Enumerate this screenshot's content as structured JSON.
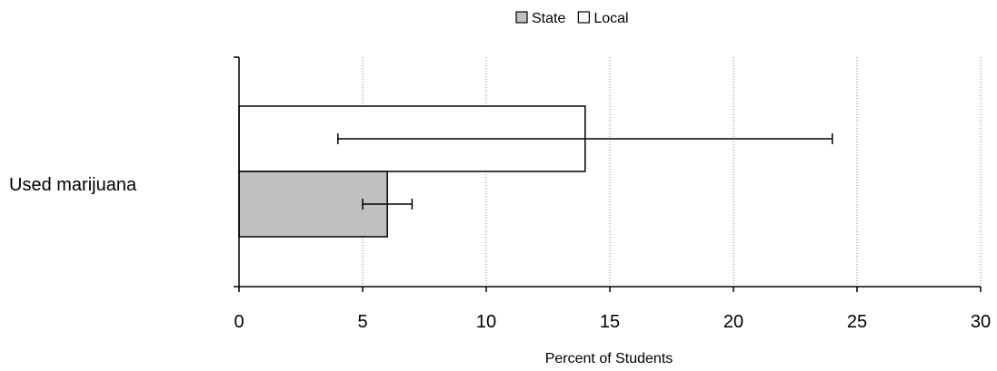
{
  "chart_data": {
    "type": "bar",
    "orientation": "horizontal",
    "categories": [
      "Used marijuana"
    ],
    "series": [
      {
        "name": "State",
        "values": [
          6
        ],
        "error_low": [
          5
        ],
        "error_high": [
          7
        ],
        "color": "#c0c0c0"
      },
      {
        "name": "Local",
        "values": [
          14
        ],
        "error_low": [
          4
        ],
        "error_high": [
          24
        ],
        "color": "#ffffff"
      }
    ],
    "xlabel": "Percent of Students",
    "xlim": [
      0,
      30
    ],
    "xticks": [
      0,
      5,
      10,
      15,
      20,
      25,
      30
    ],
    "xtick_labels": [
      "0",
      "5",
      "10",
      "15",
      "20",
      "25",
      "30"
    ],
    "grid": "vertical dotted",
    "legend_position": "top"
  }
}
